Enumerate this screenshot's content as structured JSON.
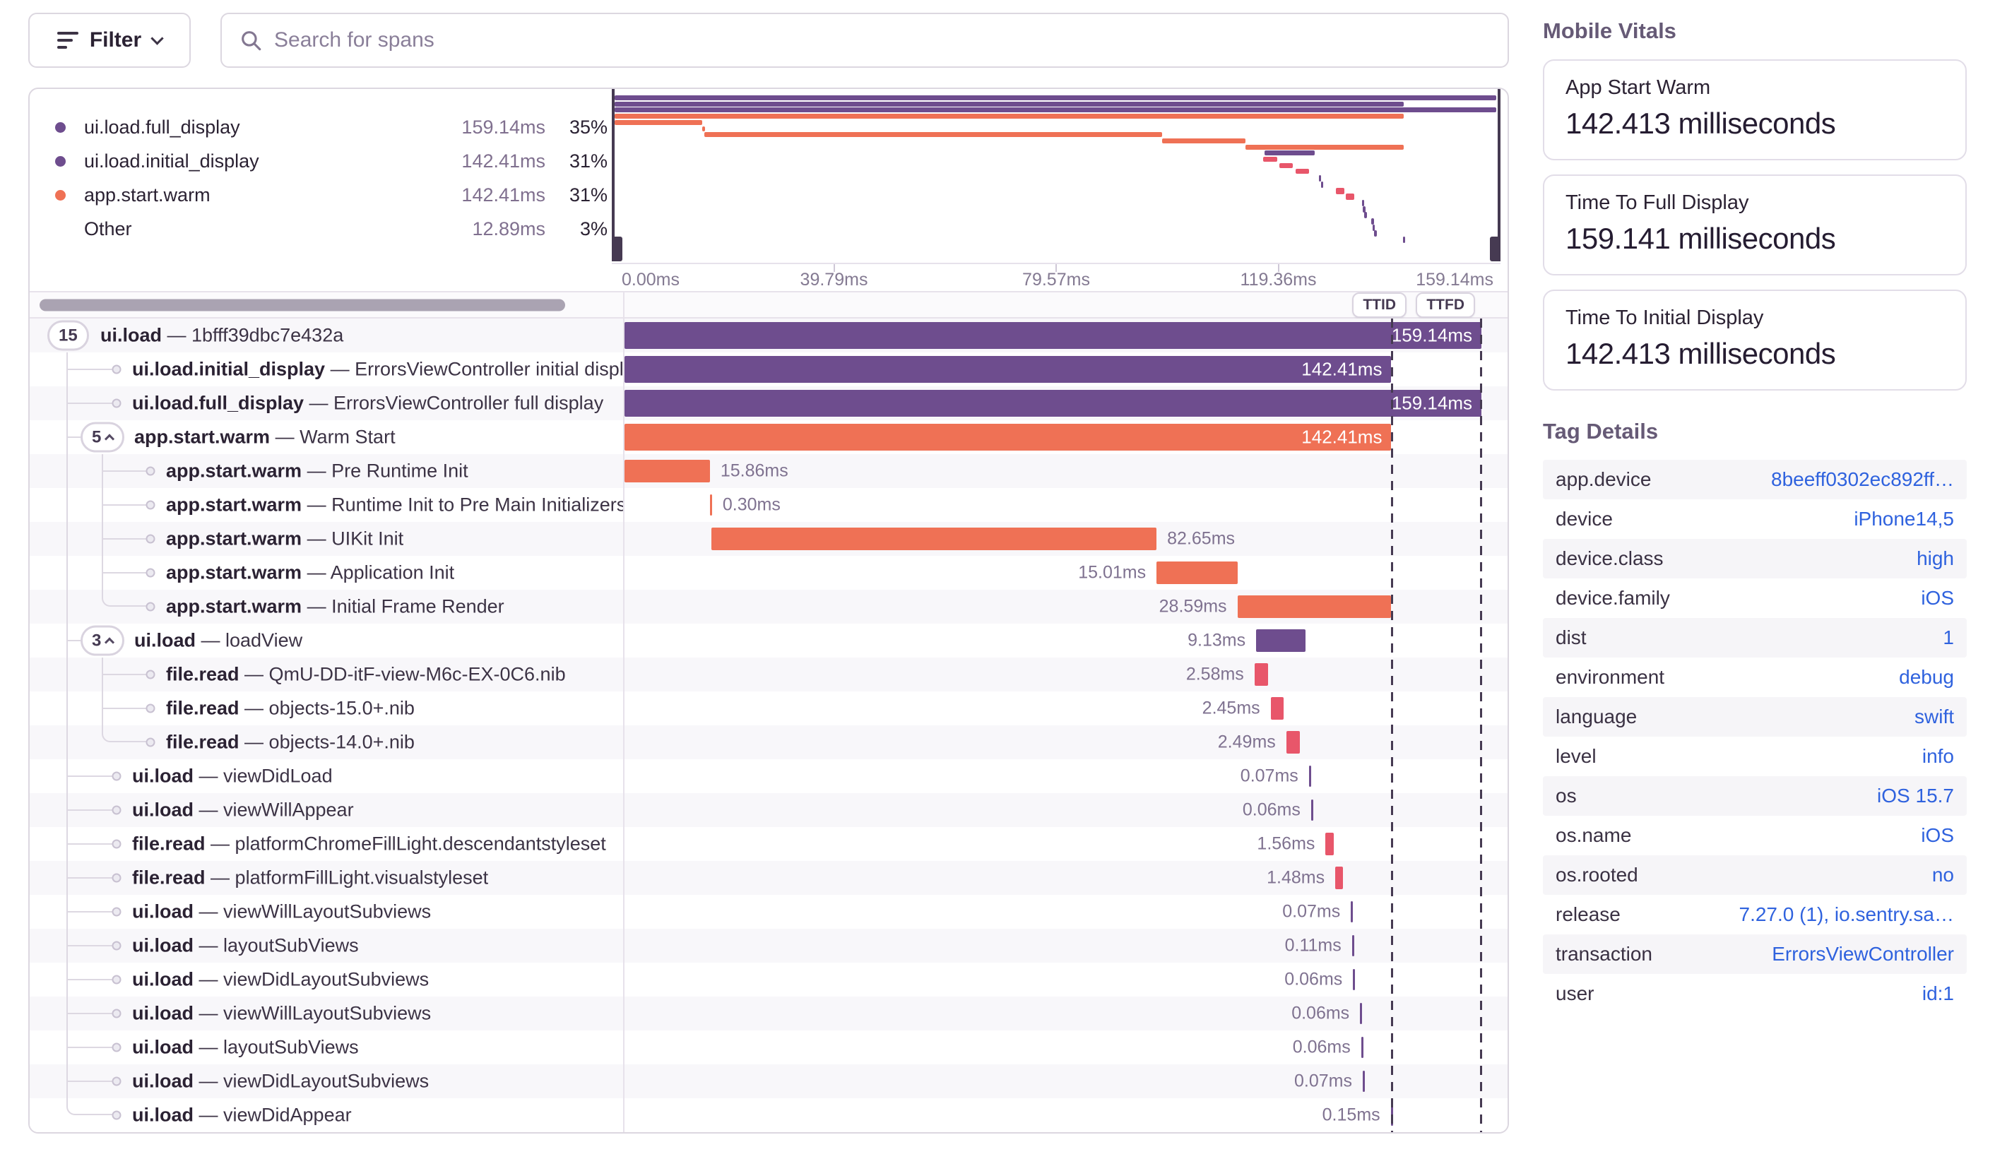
{
  "toolbar": {
    "filter_label": "Filter",
    "search_placeholder": "Search for spans"
  },
  "colors": {
    "purple": "#6e4d8e",
    "orange": "#ef7155",
    "pink": "#e8566a",
    "link": "#2f62de"
  },
  "legend": {
    "items": [
      {
        "label": "ui.load.full_display",
        "duration": "159.14ms",
        "percent": "35%",
        "color": "purple"
      },
      {
        "label": "ui.load.initial_display",
        "duration": "142.41ms",
        "percent": "31%",
        "color": "purple"
      },
      {
        "label": "app.start.warm",
        "duration": "142.41ms",
        "percent": "31%",
        "color": "orange"
      },
      {
        "label": "Other",
        "duration": "12.89ms",
        "percent": "3%",
        "color": null
      }
    ]
  },
  "timeline": {
    "max_ms": 159.14,
    "axis_ticks": [
      "0.00ms",
      "39.79ms",
      "79.57ms",
      "119.36ms",
      "159.14ms"
    ],
    "ttid_label": "TTID",
    "ttfd_label": "TTFD",
    "ttid_ms": 142.41,
    "ttfd_ms": 159.14
  },
  "spans": [
    {
      "op": "ui.load",
      "desc": "1bfff39dbc7e432a",
      "pill": "15",
      "chev": false,
      "depth": 0,
      "spines": [],
      "last": false,
      "color": "purple",
      "start_ms": 0,
      "dur_ms": 159.14,
      "dur_label": "159.14ms",
      "label_pos": "inside"
    },
    {
      "op": "ui.load.initial_display",
      "desc": "ErrorsViewController initial display",
      "pill": null,
      "depth": 1,
      "spines": [
        0
      ],
      "last": false,
      "color": "purple",
      "start_ms": 0,
      "dur_ms": 142.41,
      "dur_label": "142.41ms",
      "label_pos": "inside"
    },
    {
      "op": "ui.load.full_display",
      "desc": "ErrorsViewController full display",
      "pill": null,
      "depth": 1,
      "spines": [
        0
      ],
      "last": false,
      "color": "purple",
      "start_ms": 0,
      "dur_ms": 159.14,
      "dur_label": "159.14ms",
      "label_pos": "inside"
    },
    {
      "op": "app.start.warm",
      "desc": "Warm Start",
      "pill": "5",
      "chev": true,
      "depth": 1,
      "spines": [
        0
      ],
      "last": false,
      "color": "orange",
      "start_ms": 0,
      "dur_ms": 142.41,
      "dur_label": "142.41ms",
      "label_pos": "inside"
    },
    {
      "op": "app.start.warm",
      "desc": "Pre Runtime Init",
      "pill": null,
      "depth": 2,
      "spines": [
        0,
        1
      ],
      "last": false,
      "color": "orange",
      "start_ms": 0,
      "dur_ms": 15.86,
      "dur_label": "15.86ms",
      "label_pos": "right"
    },
    {
      "op": "app.start.warm",
      "desc": "Runtime Init to Pre Main Initializers",
      "pill": null,
      "depth": 2,
      "spines": [
        0,
        1
      ],
      "last": false,
      "color": "orange",
      "start_ms": 15.86,
      "dur_ms": 0.3,
      "dur_label": "0.30ms",
      "label_pos": "right"
    },
    {
      "op": "app.start.warm",
      "desc": "UIKit Init",
      "pill": null,
      "depth": 2,
      "spines": [
        0,
        1
      ],
      "last": false,
      "color": "orange",
      "start_ms": 16.16,
      "dur_ms": 82.65,
      "dur_label": "82.65ms",
      "label_pos": "right"
    },
    {
      "op": "app.start.warm",
      "desc": "Application Init",
      "pill": null,
      "depth": 2,
      "spines": [
        0,
        1
      ],
      "last": false,
      "color": "orange",
      "start_ms": 98.81,
      "dur_ms": 15.01,
      "dur_label": "15.01ms",
      "label_pos": "left"
    },
    {
      "op": "app.start.warm",
      "desc": "Initial Frame Render",
      "pill": null,
      "depth": 2,
      "spines": [
        0
      ],
      "last": true,
      "color": "orange",
      "start_ms": 113.82,
      "dur_ms": 28.59,
      "dur_label": "28.59ms",
      "label_pos": "left"
    },
    {
      "op": "ui.load",
      "desc": "loadView",
      "pill": "3",
      "chev": true,
      "depth": 1,
      "spines": [
        0
      ],
      "last": false,
      "color": "purple",
      "start_ms": 117.3,
      "dur_ms": 9.13,
      "dur_label": "9.13ms",
      "label_pos": "left"
    },
    {
      "op": "file.read",
      "desc": "QmU-DD-itF-view-M6c-EX-0C6.nib",
      "pill": null,
      "depth": 2,
      "spines": [
        0,
        1
      ],
      "last": false,
      "color": "pink",
      "start_ms": 117.0,
      "dur_ms": 2.58,
      "dur_label": "2.58ms",
      "label_pos": "left"
    },
    {
      "op": "file.read",
      "desc": "objects-15.0+.nib",
      "pill": null,
      "depth": 2,
      "spines": [
        0,
        1
      ],
      "last": false,
      "color": "pink",
      "start_ms": 120.0,
      "dur_ms": 2.45,
      "dur_label": "2.45ms",
      "label_pos": "left"
    },
    {
      "op": "file.read",
      "desc": "objects-14.0+.nib",
      "pill": null,
      "depth": 2,
      "spines": [
        0
      ],
      "last": true,
      "color": "pink",
      "start_ms": 122.9,
      "dur_ms": 2.49,
      "dur_label": "2.49ms",
      "label_pos": "left"
    },
    {
      "op": "ui.load",
      "desc": "viewDidLoad",
      "pill": null,
      "depth": 1,
      "spines": [
        0
      ],
      "last": false,
      "color": "purple",
      "start_ms": 127.1,
      "dur_ms": 0.07,
      "dur_label": "0.07ms",
      "label_pos": "left"
    },
    {
      "op": "ui.load",
      "desc": "viewWillAppear",
      "pill": null,
      "depth": 1,
      "spines": [
        0
      ],
      "last": false,
      "color": "purple",
      "start_ms": 127.5,
      "dur_ms": 0.06,
      "dur_label": "0.06ms",
      "label_pos": "left"
    },
    {
      "op": "file.read",
      "desc": "platformChromeFillLight.descendantstyleset",
      "pill": null,
      "depth": 1,
      "spines": [
        0
      ],
      "last": false,
      "color": "pink",
      "start_ms": 130.2,
      "dur_ms": 1.56,
      "dur_label": "1.56ms",
      "label_pos": "left"
    },
    {
      "op": "file.read",
      "desc": "platformFillLight.visualstyleset",
      "pill": null,
      "depth": 1,
      "spines": [
        0
      ],
      "last": false,
      "color": "pink",
      "start_ms": 132.0,
      "dur_ms": 1.48,
      "dur_label": "1.48ms",
      "label_pos": "left"
    },
    {
      "op": "ui.load",
      "desc": "viewWillLayoutSubviews",
      "pill": null,
      "depth": 1,
      "spines": [
        0
      ],
      "last": false,
      "color": "purple",
      "start_ms": 134.9,
      "dur_ms": 0.07,
      "dur_label": "0.07ms",
      "label_pos": "left"
    },
    {
      "op": "ui.load",
      "desc": "layoutSubViews",
      "pill": null,
      "depth": 1,
      "spines": [
        0
      ],
      "last": false,
      "color": "purple",
      "start_ms": 135.1,
      "dur_ms": 0.11,
      "dur_label": "0.11ms",
      "label_pos": "left"
    },
    {
      "op": "ui.load",
      "desc": "viewDidLayoutSubviews",
      "pill": null,
      "depth": 1,
      "spines": [
        0
      ],
      "last": false,
      "color": "purple",
      "start_ms": 135.3,
      "dur_ms": 0.06,
      "dur_label": "0.06ms",
      "label_pos": "left"
    },
    {
      "op": "ui.load",
      "desc": "viewWillLayoutSubviews",
      "pill": null,
      "depth": 1,
      "spines": [
        0
      ],
      "last": false,
      "color": "purple",
      "start_ms": 136.6,
      "dur_ms": 0.06,
      "dur_label": "0.06ms",
      "label_pos": "left"
    },
    {
      "op": "ui.load",
      "desc": "layoutSubViews",
      "pill": null,
      "depth": 1,
      "spines": [
        0
      ],
      "last": false,
      "color": "purple",
      "start_ms": 136.8,
      "dur_ms": 0.06,
      "dur_label": "0.06ms",
      "label_pos": "left"
    },
    {
      "op": "ui.load",
      "desc": "viewDidLayoutSubviews",
      "pill": null,
      "depth": 1,
      "spines": [
        0
      ],
      "last": false,
      "color": "purple",
      "start_ms": 137.1,
      "dur_ms": 0.07,
      "dur_label": "0.07ms",
      "label_pos": "left"
    },
    {
      "op": "ui.load",
      "desc": "viewDidAppear",
      "pill": null,
      "depth": 1,
      "spines": [],
      "last": true,
      "color": "purple",
      "start_ms": 142.3,
      "dur_ms": 0.15,
      "dur_label": "0.15ms",
      "label_pos": "left"
    }
  ],
  "vitals": {
    "title": "Mobile Vitals",
    "cards": [
      {
        "label": "App Start Warm",
        "value": "142.413 milliseconds"
      },
      {
        "label": "Time To Full Display",
        "value": "159.141 milliseconds"
      },
      {
        "label": "Time To Initial Display",
        "value": "142.413 milliseconds"
      }
    ]
  },
  "tags": {
    "title": "Tag Details",
    "rows": [
      {
        "key": "app.device",
        "value": "8beeff0302ec892ff…"
      },
      {
        "key": "device",
        "value": "iPhone14,5"
      },
      {
        "key": "device.class",
        "value": "high"
      },
      {
        "key": "device.family",
        "value": "iOS"
      },
      {
        "key": "dist",
        "value": "1"
      },
      {
        "key": "environment",
        "value": "debug"
      },
      {
        "key": "language",
        "value": "swift"
      },
      {
        "key": "level",
        "value": "info"
      },
      {
        "key": "os",
        "value": "iOS 15.7"
      },
      {
        "key": "os.name",
        "value": "iOS"
      },
      {
        "key": "os.rooted",
        "value": "no"
      },
      {
        "key": "release",
        "value": "7.27.0 (1), io.sentry.sa…"
      },
      {
        "key": "transaction",
        "value": "ErrorsViewController"
      },
      {
        "key": "user",
        "value": "id:1"
      }
    ]
  }
}
